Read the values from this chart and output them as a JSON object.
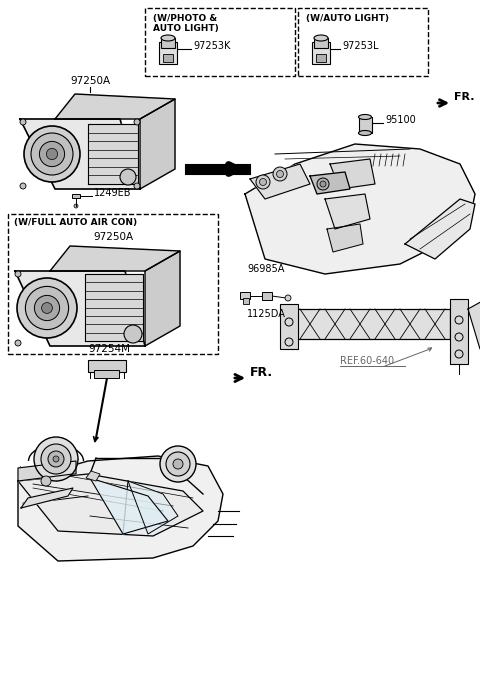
{
  "bg_color": "#ffffff",
  "lc": "#000000",
  "ref_color": "#666666",
  "parts": {
    "photo_auto_light_label": "(W/PHOTO &\nAUTO LIGHT)",
    "auto_light_label": "(W/AUTO LIGHT)",
    "photo_part": "97253K",
    "auto_part": "97253L",
    "heater_top": "97250A",
    "screw": "1249EB",
    "full_auto_label": "(W/FULL AUTO AIR CON)",
    "heater_full": "97250A",
    "sensor": "97254M",
    "interior": "95100",
    "switch": "96985A",
    "bracket": "1125DA",
    "ref_link": "REF.60-640",
    "fr": "FR."
  }
}
